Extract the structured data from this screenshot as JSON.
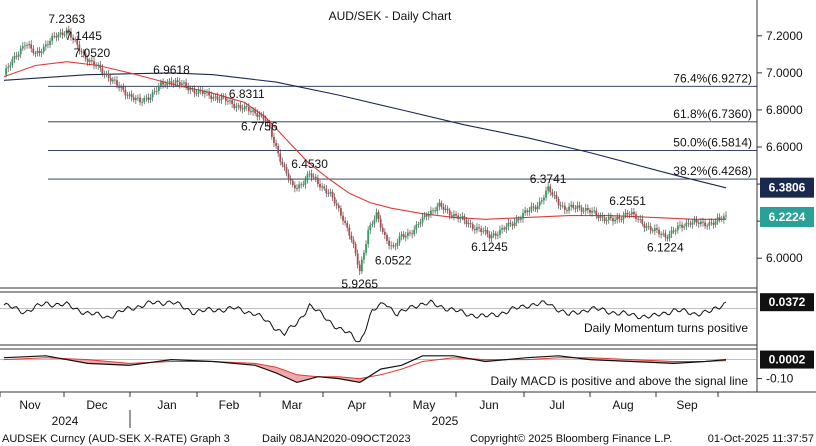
{
  "chart_data": {
    "type": "line",
    "title": "AUD/SEK - Daily Chart",
    "instrument": "AUDSEK Curncy (AUD-SEK X-RATE) Graph 3",
    "footer_range": "Daily 08JAN2020-09OCT2023",
    "copyright": "Copyright© 2025 Bloomberg Finance L.P.",
    "date_stamp": "01-Oct-2025 11:37:57",
    "x_months": [
      "Nov",
      "Dec",
      "Jan",
      "Feb",
      "Mar",
      "Apr",
      "May",
      "Jun",
      "Jul",
      "Aug",
      "Sep"
    ],
    "x_years": [
      "2024",
      "2025"
    ],
    "main_panel": {
      "ylim": [
        5.85,
        7.35
      ],
      "yticks": [
        "7.2000",
        "7.0000",
        "6.8000",
        "6.6000",
        "6.4000",
        "6.2000",
        "6.0000"
      ],
      "price_series": {
        "name": "AUDSEK",
        "points": [
          [
            0,
            6.99
          ],
          [
            6,
            7.1
          ],
          [
            10,
            7.16
          ],
          [
            15,
            7.1
          ],
          [
            20,
            7.15
          ],
          [
            25,
            7.2
          ],
          [
            30,
            7.23
          ],
          [
            34,
            7.16
          ],
          [
            38,
            7.1
          ],
          [
            42,
            7.05
          ],
          [
            46,
            7.02
          ],
          [
            50,
            6.98
          ],
          [
            55,
            6.92
          ],
          [
            60,
            6.88
          ],
          [
            65,
            6.84
          ],
          [
            70,
            6.88
          ],
          [
            75,
            6.93
          ],
          [
            80,
            6.96
          ],
          [
            86,
            6.93
          ],
          [
            92,
            6.9
          ],
          [
            98,
            6.88
          ],
          [
            104,
            6.86
          ],
          [
            110,
            6.83
          ],
          [
            116,
            6.8
          ],
          [
            122,
            6.78
          ],
          [
            126,
            6.72
          ],
          [
            130,
            6.6
          ],
          [
            134,
            6.48
          ],
          [
            138,
            6.38
          ],
          [
            142,
            6.4
          ],
          [
            146,
            6.45
          ],
          [
            150,
            6.41
          ],
          [
            156,
            6.34
          ],
          [
            162,
            6.22
          ],
          [
            166,
            6.1
          ],
          [
            170,
            5.93
          ],
          [
            174,
            6.15
          ],
          [
            178,
            6.23
          ],
          [
            182,
            6.12
          ],
          [
            186,
            6.05
          ],
          [
            190,
            6.12
          ],
          [
            196,
            6.15
          ],
          [
            202,
            6.24
          ],
          [
            208,
            6.28
          ],
          [
            214,
            6.24
          ],
          [
            220,
            6.2
          ],
          [
            226,
            6.16
          ],
          [
            232,
            6.12
          ],
          [
            238,
            6.15
          ],
          [
            244,
            6.2
          ],
          [
            250,
            6.25
          ],
          [
            256,
            6.3
          ],
          [
            260,
            6.37
          ],
          [
            264,
            6.32
          ],
          [
            268,
            6.26
          ],
          [
            274,
            6.28
          ],
          [
            280,
            6.25
          ],
          [
            286,
            6.22
          ],
          [
            292,
            6.2
          ],
          [
            298,
            6.25
          ],
          [
            304,
            6.2
          ],
          [
            310,
            6.15
          ],
          [
            316,
            6.12
          ],
          [
            322,
            6.16
          ],
          [
            328,
            6.2
          ],
          [
            334,
            6.18
          ],
          [
            340,
            6.2
          ],
          [
            345,
            6.22
          ]
        ]
      },
      "ma_short": {
        "name": "",
        "color": "#e03a3a",
        "points": [
          [
            0,
            6.98
          ],
          [
            15,
            7.04
          ],
          [
            30,
            7.06
          ],
          [
            45,
            7.04
          ],
          [
            60,
            7.0
          ],
          [
            80,
            6.94
          ],
          [
            100,
            6.89
          ],
          [
            115,
            6.84
          ],
          [
            125,
            6.76
          ],
          [
            135,
            6.64
          ],
          [
            145,
            6.52
          ],
          [
            155,
            6.43
          ],
          [
            165,
            6.35
          ],
          [
            175,
            6.3
          ],
          [
            185,
            6.27
          ],
          [
            200,
            6.24
          ],
          [
            215,
            6.22
          ],
          [
            230,
            6.21
          ],
          [
            250,
            6.22
          ],
          [
            270,
            6.23
          ],
          [
            290,
            6.23
          ],
          [
            310,
            6.22
          ],
          [
            330,
            6.21
          ],
          [
            345,
            6.21
          ]
        ]
      },
      "ma_long": {
        "name": "",
        "color": "#1a2a4f",
        "points": [
          [
            0,
            6.96
          ],
          [
            40,
            6.99
          ],
          [
            80,
            7.0
          ],
          [
            100,
            6.99
          ],
          [
            130,
            6.95
          ],
          [
            160,
            6.88
          ],
          [
            190,
            6.8
          ],
          [
            220,
            6.72
          ],
          [
            250,
            6.65
          ],
          [
            280,
            6.57
          ],
          [
            300,
            6.51
          ],
          [
            320,
            6.45
          ],
          [
            345,
            6.38
          ]
        ]
      },
      "fib_levels": [
        {
          "label": "76.4%(6.9272)",
          "value": 6.9272
        },
        {
          "label": "61.8%(6.7360)",
          "value": 6.736
        },
        {
          "label": "50.0%(6.5814)",
          "value": 6.5814
        },
        {
          "label": "38.2%(6.4268)",
          "value": 6.4268
        }
      ],
      "annotations": [
        {
          "text": "7.2363",
          "value": 7.2363,
          "x": 30
        },
        {
          "text": "7.1445",
          "value": 7.1445,
          "x": 38
        },
        {
          "text": "7.0520",
          "value": 7.052,
          "x": 42
        },
        {
          "text": "6.9618",
          "value": 6.9618,
          "x": 80
        },
        {
          "text": "6.8311",
          "value": 6.8311,
          "x": 116
        },
        {
          "text": "6.7756",
          "value": 6.7756,
          "x": 122
        },
        {
          "text": "6.4530",
          "value": 6.453,
          "x": 146
        },
        {
          "text": "5.9265",
          "value": 5.9265,
          "x": 170
        },
        {
          "text": "6.0522",
          "value": 6.0522,
          "x": 186
        },
        {
          "text": "6.1245",
          "value": 6.1245,
          "x": 232
        },
        {
          "text": "6.3741",
          "value": 6.3741,
          "x": 260
        },
        {
          "text": "6.2551",
          "value": 6.2551,
          "x": 298
        },
        {
          "text": "6.1224",
          "value": 6.1224,
          "x": 316
        }
      ],
      "last_price_tags": [
        {
          "text": "6.3806",
          "value": 6.3806,
          "bg": "#1a2a4f"
        },
        {
          "text": "6.2224",
          "value": 6.2224,
          "bg": "#2aa198"
        }
      ]
    },
    "momentum_panel": {
      "label": "Daily Momentum turns positive",
      "ylim": [
        -0.2,
        0.08
      ],
      "last_tag": {
        "text": "0.0372",
        "value": 0.0372
      },
      "points": [
        [
          0,
          0.02
        ],
        [
          10,
          -0.02
        ],
        [
          20,
          0.03
        ],
        [
          30,
          0.02
        ],
        [
          40,
          -0.03
        ],
        [
          50,
          -0.05
        ],
        [
          60,
          0.0
        ],
        [
          70,
          0.03
        ],
        [
          80,
          0.04
        ],
        [
          90,
          -0.02
        ],
        [
          100,
          -0.01
        ],
        [
          110,
          0.0
        ],
        [
          120,
          -0.03
        ],
        [
          128,
          -0.1
        ],
        [
          134,
          -0.15
        ],
        [
          140,
          -0.09
        ],
        [
          146,
          0.02
        ],
        [
          152,
          -0.04
        ],
        [
          160,
          -0.12
        ],
        [
          166,
          -0.16
        ],
        [
          170,
          -0.2
        ],
        [
          176,
          -0.02
        ],
        [
          182,
          0.04
        ],
        [
          188,
          -0.04
        ],
        [
          196,
          0.02
        ],
        [
          204,
          0.03
        ],
        [
          212,
          0.0
        ],
        [
          220,
          -0.03
        ],
        [
          230,
          -0.05
        ],
        [
          240,
          -0.02
        ],
        [
          250,
          0.02
        ],
        [
          260,
          0.03
        ],
        [
          270,
          -0.04
        ],
        [
          280,
          0.0
        ],
        [
          290,
          -0.02
        ],
        [
          300,
          -0.04
        ],
        [
          310,
          -0.05
        ],
        [
          320,
          -0.01
        ],
        [
          330,
          -0.03
        ],
        [
          338,
          -0.02
        ],
        [
          345,
          0.0372
        ]
      ]
    },
    "macd_panel": {
      "label": "Daily MACD is positive and above the signal line",
      "ylim": [
        -0.16,
        0.04
      ],
      "yticks": [
        "-0.10"
      ],
      "last_tag": {
        "text": "0.0002",
        "value": 0.0002
      },
      "macd": [
        [
          0,
          0.01
        ],
        [
          20,
          0.02
        ],
        [
          40,
          -0.02
        ],
        [
          60,
          -0.03
        ],
        [
          80,
          0.0
        ],
        [
          100,
          -0.01
        ],
        [
          120,
          -0.03
        ],
        [
          130,
          -0.07
        ],
        [
          140,
          -0.12
        ],
        [
          150,
          -0.09
        ],
        [
          160,
          -0.1
        ],
        [
          170,
          -0.12
        ],
        [
          180,
          -0.05
        ],
        [
          190,
          -0.03
        ],
        [
          200,
          0.02
        ],
        [
          215,
          0.02
        ],
        [
          230,
          -0.01
        ],
        [
          250,
          0.01
        ],
        [
          265,
          0.02
        ],
        [
          280,
          0.0
        ],
        [
          300,
          -0.01
        ],
        [
          320,
          -0.02
        ],
        [
          335,
          -0.01
        ],
        [
          345,
          0.0002
        ]
      ],
      "signal": [
        [
          0,
          0.0
        ],
        [
          20,
          0.01
        ],
        [
          40,
          0.0
        ],
        [
          60,
          -0.02
        ],
        [
          80,
          -0.01
        ],
        [
          100,
          -0.01
        ],
        [
          120,
          -0.02
        ],
        [
          130,
          -0.04
        ],
        [
          140,
          -0.08
        ],
        [
          150,
          -0.09
        ],
        [
          160,
          -0.09
        ],
        [
          170,
          -0.1
        ],
        [
          180,
          -0.08
        ],
        [
          190,
          -0.05
        ],
        [
          200,
          -0.01
        ],
        [
          215,
          0.01
        ],
        [
          230,
          0.0
        ],
        [
          250,
          0.0
        ],
        [
          265,
          0.01
        ],
        [
          280,
          0.01
        ],
        [
          300,
          0.0
        ],
        [
          320,
          -0.01
        ],
        [
          335,
          -0.01
        ],
        [
          345,
          -0.005
        ]
      ]
    }
  }
}
